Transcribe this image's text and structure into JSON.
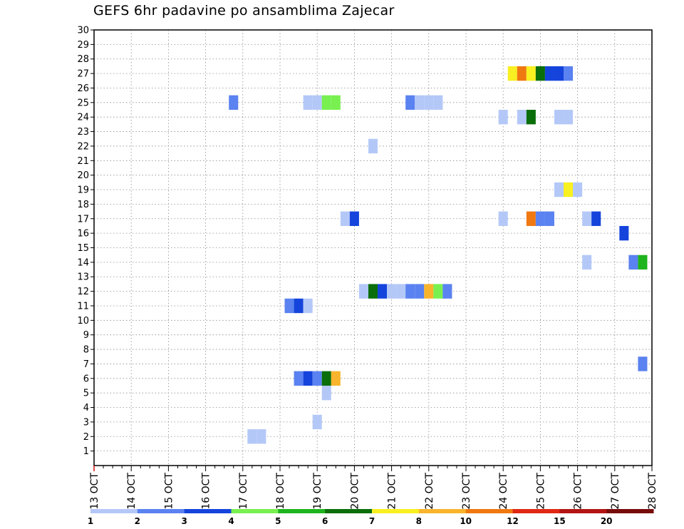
{
  "chart_data": {
    "type": "heatmap",
    "title": "GEFS 6hr padavine po ansamblima Zajecar",
    "x_tick_labels": [
      "13 OCT",
      "14 OCT",
      "15 OCT",
      "16 OCT",
      "17 OCT",
      "18 OCT",
      "19 OCT",
      "20 OCT",
      "21 OCT",
      "22 OCT",
      "23 OCT",
      "24 OCT",
      "25 OCT",
      "26 OCT",
      "27 OCT",
      "28 OCT"
    ],
    "x_unit": "6-hour steps starting 13 OCT 00Z (4 steps per day)",
    "y_tick_labels": [
      "1",
      "2",
      "3",
      "4",
      "5",
      "6",
      "7",
      "8",
      "9",
      "10",
      "11",
      "12",
      "13",
      "14",
      "15",
      "16",
      "17",
      "18",
      "19",
      "20",
      "21",
      "22",
      "23",
      "24",
      "25",
      "26",
      "27",
      "28",
      "29",
      "30"
    ],
    "ylim": [
      0,
      30
    ],
    "xlim": [
      0,
      60
    ],
    "grid": true,
    "legend_position": "bottom",
    "legend": {
      "labels": [
        "1",
        "2",
        "3",
        "4",
        "5",
        "6",
        "7",
        "8",
        "10",
        "12",
        "15",
        "20"
      ],
      "colors": [
        "#b4c8f8",
        "#5a82f0",
        "#1444dc",
        "#78f050",
        "#1eb41e",
        "#0a6e0a",
        "#f8f020",
        "#f8b42c",
        "#f07810",
        "#e02814",
        "#b41414",
        "#780a0a"
      ]
    },
    "cells": [
      {
        "member": 2,
        "step": 17,
        "bin": 1
      },
      {
        "member": 2,
        "step": 18,
        "bin": 1
      },
      {
        "member": 3,
        "step": 24,
        "bin": 1
      },
      {
        "member": 5,
        "step": 25,
        "bin": 1
      },
      {
        "member": 6,
        "step": 22,
        "bin": 2
      },
      {
        "member": 6,
        "step": 23,
        "bin": 3
      },
      {
        "member": 6,
        "step": 24,
        "bin": 2
      },
      {
        "member": 6,
        "step": 25,
        "bin": 6
      },
      {
        "member": 6,
        "step": 26,
        "bin": 8
      },
      {
        "member": 7,
        "step": 59,
        "bin": 2
      },
      {
        "member": 11,
        "step": 21,
        "bin": 2
      },
      {
        "member": 11,
        "step": 22,
        "bin": 3
      },
      {
        "member": 11,
        "step": 23,
        "bin": 1
      },
      {
        "member": 12,
        "step": 29,
        "bin": 1
      },
      {
        "member": 12,
        "step": 30,
        "bin": 6
      },
      {
        "member": 12,
        "step": 31,
        "bin": 3
      },
      {
        "member": 12,
        "step": 32,
        "bin": 1
      },
      {
        "member": 12,
        "step": 33,
        "bin": 1
      },
      {
        "member": 12,
        "step": 34,
        "bin": 2
      },
      {
        "member": 12,
        "step": 35,
        "bin": 2
      },
      {
        "member": 12,
        "step": 36,
        "bin": 8
      },
      {
        "member": 12,
        "step": 37,
        "bin": 4
      },
      {
        "member": 12,
        "step": 38,
        "bin": 2
      },
      {
        "member": 14,
        "step": 53,
        "bin": 1
      },
      {
        "member": 14,
        "step": 58,
        "bin": 2
      },
      {
        "member": 14,
        "step": 59,
        "bin": 5
      },
      {
        "member": 16,
        "step": 57,
        "bin": 3
      },
      {
        "member": 17,
        "step": 27,
        "bin": 1
      },
      {
        "member": 17,
        "step": 28,
        "bin": 3
      },
      {
        "member": 17,
        "step": 44,
        "bin": 1
      },
      {
        "member": 17,
        "step": 47,
        "bin": 9
      },
      {
        "member": 17,
        "step": 48,
        "bin": 2
      },
      {
        "member": 17,
        "step": 49,
        "bin": 2
      },
      {
        "member": 17,
        "step": 53,
        "bin": 1
      },
      {
        "member": 17,
        "step": 54,
        "bin": 3
      },
      {
        "member": 19,
        "step": 50,
        "bin": 1
      },
      {
        "member": 19,
        "step": 51,
        "bin": 7
      },
      {
        "member": 19,
        "step": 52,
        "bin": 1
      },
      {
        "member": 22,
        "step": 30,
        "bin": 1
      },
      {
        "member": 24,
        "step": 44,
        "bin": 1
      },
      {
        "member": 24,
        "step": 46,
        "bin": 1
      },
      {
        "member": 24,
        "step": 47,
        "bin": 6
      },
      {
        "member": 24,
        "step": 50,
        "bin": 1
      },
      {
        "member": 24,
        "step": 51,
        "bin": 1
      },
      {
        "member": 25,
        "step": 15,
        "bin": 2
      },
      {
        "member": 25,
        "step": 23,
        "bin": 1
      },
      {
        "member": 25,
        "step": 24,
        "bin": 1
      },
      {
        "member": 25,
        "step": 25,
        "bin": 4
      },
      {
        "member": 25,
        "step": 26,
        "bin": 4
      },
      {
        "member": 25,
        "step": 34,
        "bin": 2
      },
      {
        "member": 25,
        "step": 35,
        "bin": 1
      },
      {
        "member": 25,
        "step": 36,
        "bin": 1
      },
      {
        "member": 25,
        "step": 37,
        "bin": 1
      },
      {
        "member": 27,
        "step": 45,
        "bin": 7
      },
      {
        "member": 27,
        "step": 46,
        "bin": 9
      },
      {
        "member": 27,
        "step": 47,
        "bin": 7
      },
      {
        "member": 27,
        "step": 48,
        "bin": 6
      },
      {
        "member": 27,
        "step": 49,
        "bin": 3
      },
      {
        "member": 27,
        "step": 50,
        "bin": 3
      },
      {
        "member": 27,
        "step": 51,
        "bin": 2
      }
    ]
  }
}
